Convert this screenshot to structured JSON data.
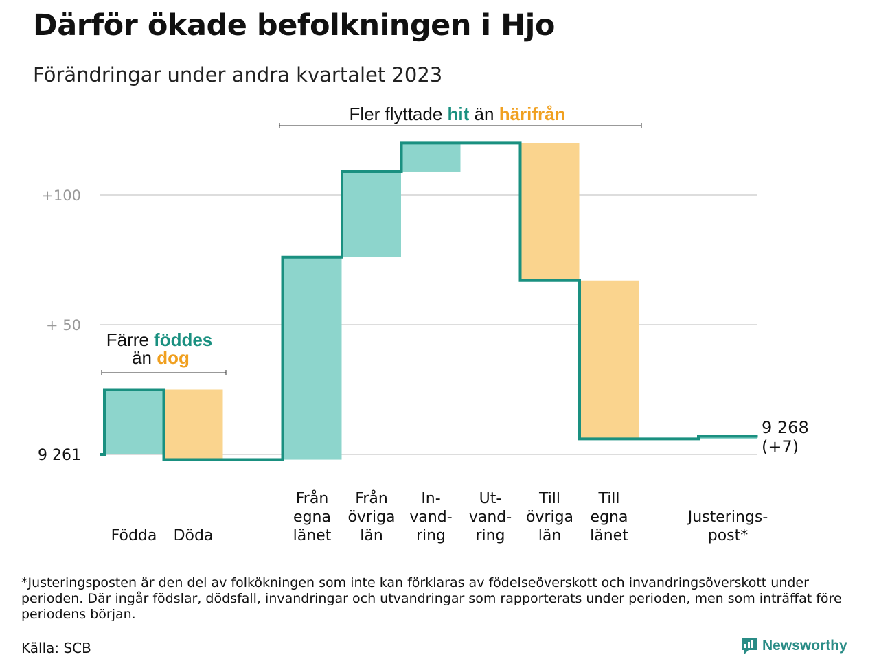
{
  "title": "Därför ökade befolkningen i Hjo",
  "subtitle": "Förändringar under andra kvartalet 2023",
  "footnote": "*Justeringsposten är den del av folkökningen som inte kan förklaras av födelseöverskott och invandringsöverskott under perioden. Där ingår födslar, dödsfall, invandringar och utvandringar som rapporterats under perioden, men som inträffat före periodens början.",
  "source": "Källa: SCB",
  "brand": "Newsworthy",
  "colors": {
    "positive_fill": "#8dd5cc",
    "negative_fill": "#fad48e",
    "line": "#1a9080",
    "green_text": "#1a9080",
    "orange_text": "#f0a020",
    "grid": "#dddddd",
    "tick_text": "#999999"
  },
  "annotations": {
    "birth_death": {
      "line1_pre": "Färre ",
      "line1_hl": "föddes",
      "line2_pre": "än ",
      "line2_hl": "dog"
    },
    "migration": {
      "pre": "Fler flyttade ",
      "hl1": "hit",
      "mid": " än ",
      "hl2": "härifrån"
    }
  },
  "end_label": {
    "value": "9 268",
    "change": "(+7)"
  },
  "start_label": "9  261",
  "chart_data": {
    "type": "waterfall",
    "title": "Därför ökade befolkningen i Hjo",
    "subtitle": "Förändringar under andra kvartalet 2023",
    "start_value": 9261,
    "end_value": 9268,
    "net_change": 7,
    "y_baseline": 0,
    "y_ticks": [
      {
        "value": 0,
        "label": "9  261"
      },
      {
        "value": 50,
        "label": "+  50"
      },
      {
        "value": 100,
        "label": "+100"
      }
    ],
    "ylim": [
      -2,
      120
    ],
    "grid": true,
    "categories": [
      {
        "label": [
          "Födda"
        ],
        "change": 25
      },
      {
        "label": [
          "Döda"
        ],
        "change": -27
      },
      {
        "label": [],
        "change": 0
      },
      {
        "label": [
          "Från",
          "egna",
          "länet"
        ],
        "change": 78
      },
      {
        "label": [
          "Från",
          "övriga",
          "län"
        ],
        "change": 33
      },
      {
        "label": [
          "In-",
          "vand-",
          "ring"
        ],
        "change": 11
      },
      {
        "label": [
          "Ut-",
          "vand-",
          "ring"
        ],
        "change": 0
      },
      {
        "label": [
          "Till",
          "övriga",
          "län"
        ],
        "change": -53
      },
      {
        "label": [
          "Till",
          "egna",
          "länet"
        ],
        "change": -61
      },
      {
        "label": [],
        "change": 0
      },
      {
        "label": [
          "Justerings-",
          "post*"
        ],
        "change": 1
      }
    ]
  }
}
